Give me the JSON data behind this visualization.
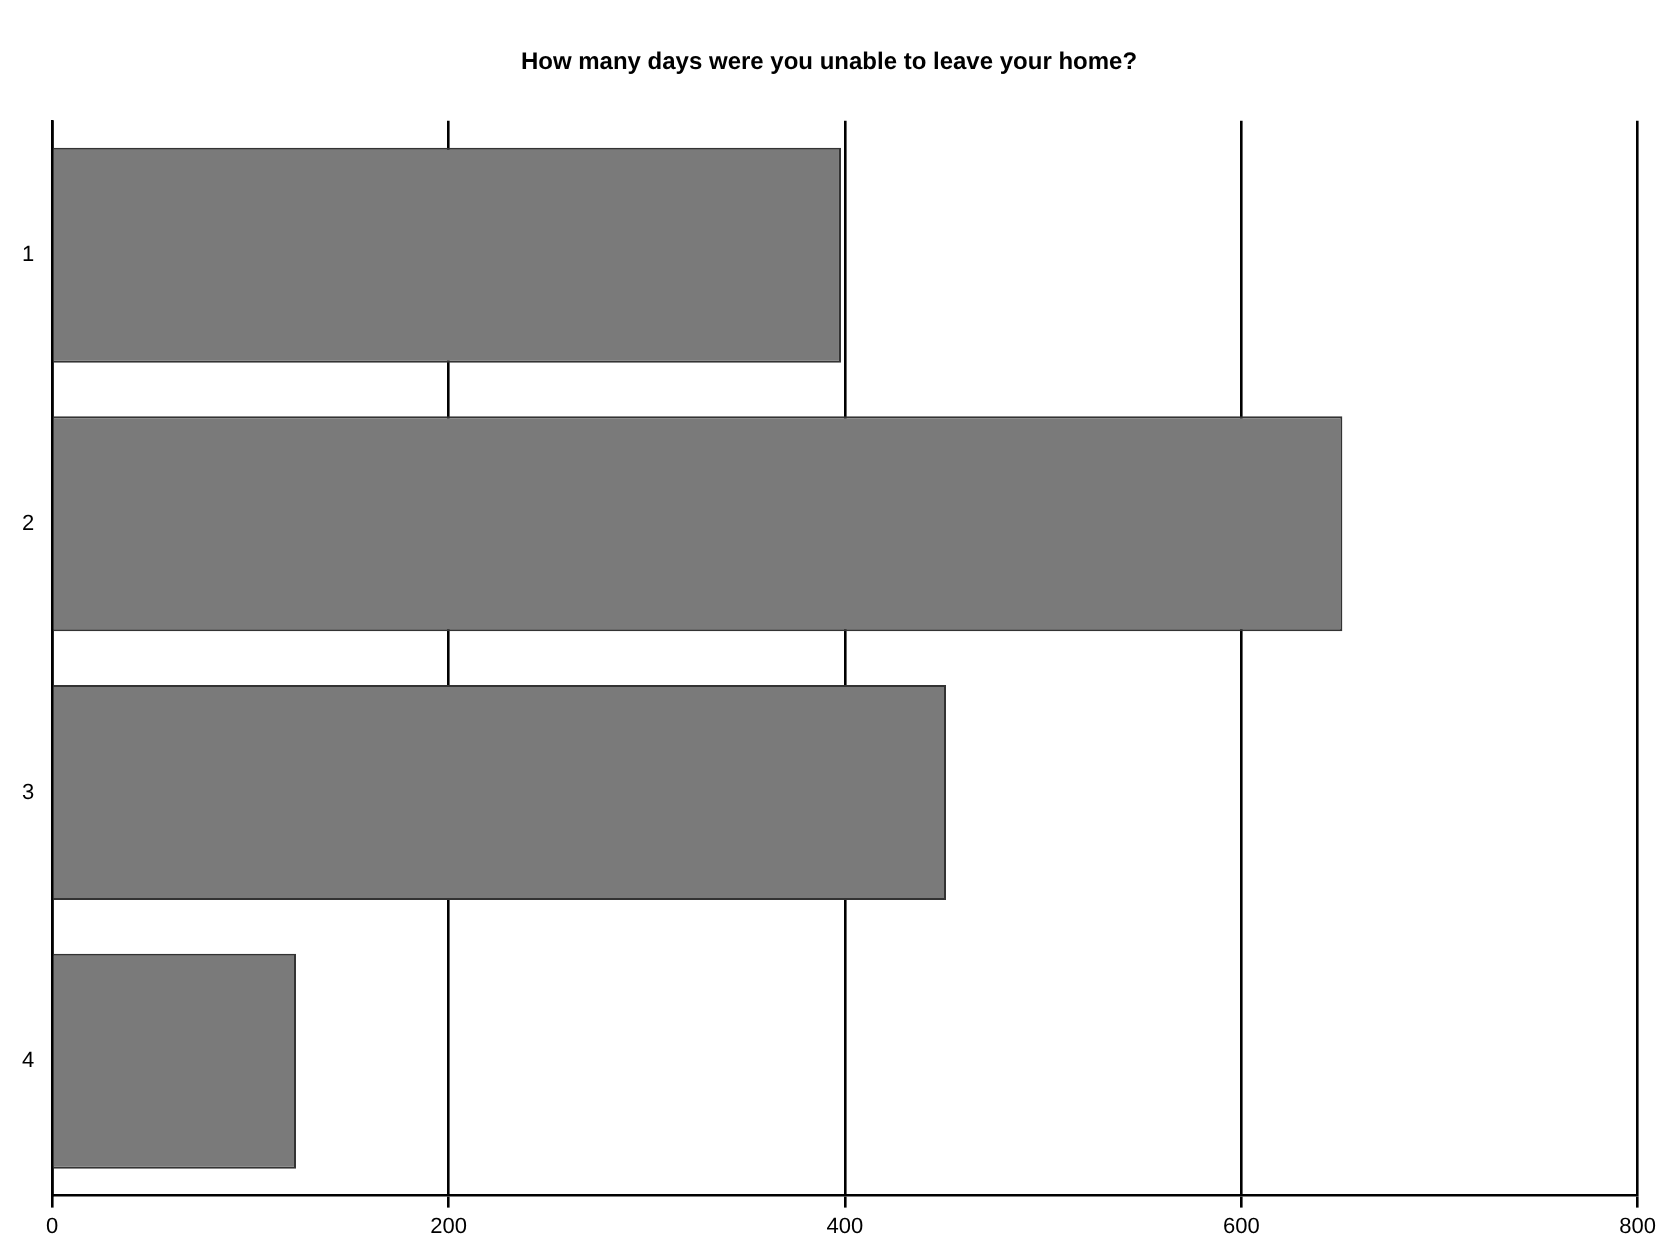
{
  "chart_data": {
    "type": "bar",
    "orientation": "horizontal",
    "title": "How many days were you unable to leave your home?",
    "categories": [
      "1",
      "2",
      "3",
      "4"
    ],
    "values": [
      398,
      651,
      451,
      123
    ],
    "color": "#7a7a7a",
    "xlim": [
      0,
      800
    ],
    "xticks": [
      0,
      200,
      400,
      600,
      800
    ],
    "grid": "x"
  }
}
